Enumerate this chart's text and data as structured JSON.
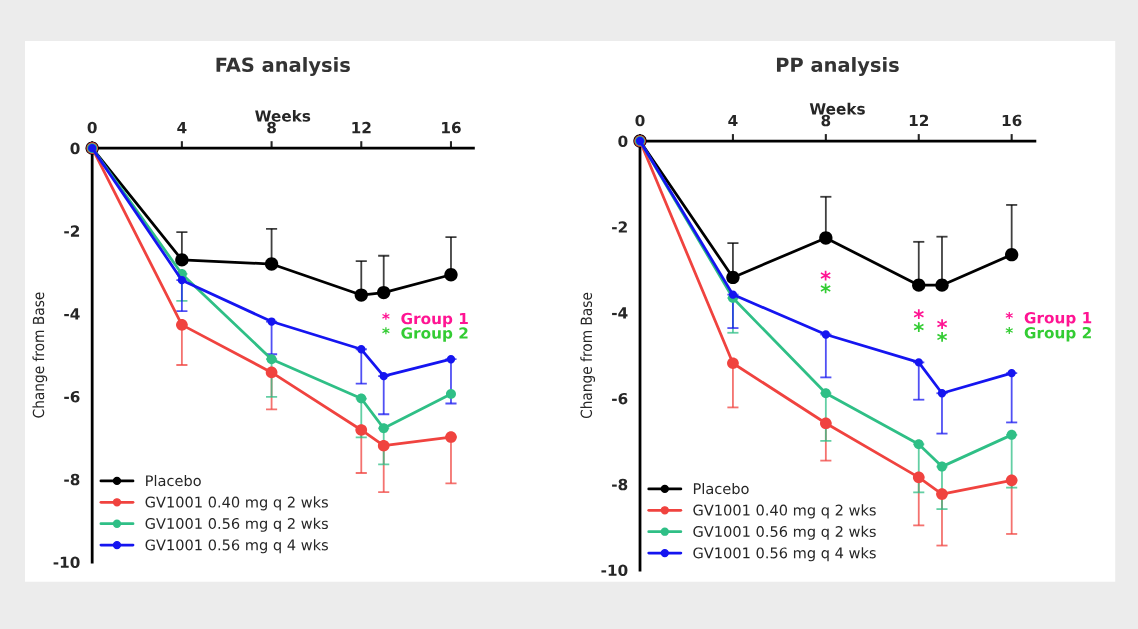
{
  "chart_data": [
    {
      "type": "line",
      "title": "FAS analysis",
      "xlabel": "Weeks",
      "ylabel": "Change from Base",
      "x": [
        0,
        4,
        8,
        12,
        13,
        16
      ],
      "xlim": [
        0,
        17
      ],
      "xticks": [
        0,
        4,
        8,
        12,
        16
      ],
      "ylim": [
        -10,
        0
      ],
      "yticks": [
        -10,
        -8,
        -6,
        -4,
        -2,
        0
      ],
      "grid": false,
      "legend": "bottom left",
      "marker": "circle",
      "line_style": "solid",
      "series": [
        {
          "name": "Placebo",
          "color": "#000000",
          "values": [
            0,
            -2.7,
            -2.8,
            -3.55,
            -3.49,
            -3.06
          ],
          "errors": [
            null,
            [
              -2.7,
              -2.03
            ],
            [
              -2.8,
              -1.95
            ],
            [
              -3.55,
              -2.73
            ],
            [
              -3.49,
              -2.6
            ],
            [
              -3.06,
              -2.15
            ]
          ]
        },
        {
          "name": "GV1001 0.40 mg q 2 wks",
          "color": "#f0433f",
          "values": [
            0,
            -4.27,
            -5.42,
            -6.81,
            -7.19,
            -6.98
          ],
          "errors": [
            null,
            [
              -5.24,
              -4.27
            ],
            [
              -6.31,
              -5.42
            ],
            [
              -7.85,
              -6.81
            ],
            [
              -8.31,
              -7.19
            ],
            [
              -8.1,
              -6.98
            ]
          ]
        },
        {
          "name": "GV1001 0.56 mg q 2 wks",
          "color": "#2fbf86",
          "values": [
            0,
            -3.04,
            -5.1,
            -6.05,
            -6.77,
            -5.94
          ],
          "errors": [
            null,
            [
              -3.69,
              -3.04
            ],
            [
              -6.01,
              -5.1
            ],
            [
              -6.99,
              -6.05
            ],
            [
              -7.64,
              -6.77
            ],
            null
          ]
        },
        {
          "name": "GV1001 0.56 mg q 4 wks",
          "color": "#1515f0",
          "values": [
            0,
            -3.19,
            -4.19,
            -4.86,
            -5.51,
            -5.1
          ],
          "errors": [
            null,
            [
              -3.94,
              -3.19
            ],
            [
              -4.98,
              -4.19
            ],
            [
              -5.69,
              -4.86
            ],
            [
              -6.43,
              -5.51
            ],
            [
              -6.17,
              -5.1
            ]
          ]
        }
      ],
      "annotations": [
        "*  Group 1",
        "*  Group 2"
      ]
    },
    {
      "type": "line",
      "title": "PP analysis",
      "xlabel": "Weeks",
      "ylabel": "Change from Base",
      "x": [
        0,
        4,
        8,
        12,
        13,
        16
      ],
      "xlim": [
        0,
        17
      ],
      "xticks": [
        0,
        4,
        8,
        12,
        16
      ],
      "ylim": [
        -10,
        0
      ],
      "yticks": [
        -10,
        -8,
        -6,
        -4,
        -2,
        0
      ],
      "grid": false,
      "legend": "bottom left",
      "marker": "circle",
      "line_style": "solid",
      "series": [
        {
          "name": "Placebo",
          "color": "#000000",
          "values": [
            0,
            -3.18,
            -2.26,
            -3.36,
            -3.36,
            -2.65
          ],
          "errors": [
            null,
            [
              -3.18,
              -2.38
            ],
            [
              -2.26,
              -1.3
            ],
            [
              -3.36,
              -2.35
            ],
            [
              -3.36,
              -2.23
            ],
            [
              -2.65,
              -1.49
            ]
          ]
        },
        {
          "name": "GV1001 0.40 mg q 2 wks",
          "color": "#f0433f",
          "values": [
            0,
            -5.18,
            -6.58,
            -7.84,
            -8.23,
            -7.91
          ],
          "errors": [
            null,
            [
              -6.21,
              -5.18
            ],
            [
              -7.45,
              -6.58
            ],
            [
              -8.96,
              -7.84
            ],
            [
              -9.43,
              -8.23
            ],
            [
              -9.16,
              -7.91
            ]
          ]
        },
        {
          "name": "GV1001 0.56 mg q 2 wks",
          "color": "#2fbf86",
          "values": [
            0,
            -3.66,
            -5.88,
            -7.07,
            -7.59,
            -6.85
          ],
          "errors": [
            null,
            [
              -4.47,
              -3.66
            ],
            [
              -6.99,
              -5.88
            ],
            [
              -8.19,
              -7.07
            ],
            [
              -8.58,
              -7.59
            ],
            [
              -8.08,
              -6.85
            ]
          ]
        },
        {
          "name": "GV1001 0.56 mg q 4 wks",
          "color": "#1515f0",
          "values": [
            0,
            -3.58,
            -4.51,
            -5.16,
            -5.88,
            -5.41
          ],
          "errors": [
            null,
            [
              -4.36,
              -3.58
            ],
            [
              -5.51,
              -4.51
            ],
            [
              -6.03,
              -5.16
            ],
            [
              -6.82,
              -5.88
            ],
            [
              -6.56,
              -5.41
            ]
          ]
        }
      ],
      "annotations": [
        "*",
        "*",
        "*",
        "*",
        "*",
        "*",
        "*  Group 1",
        "*  Group 2"
      ]
    }
  ]
}
